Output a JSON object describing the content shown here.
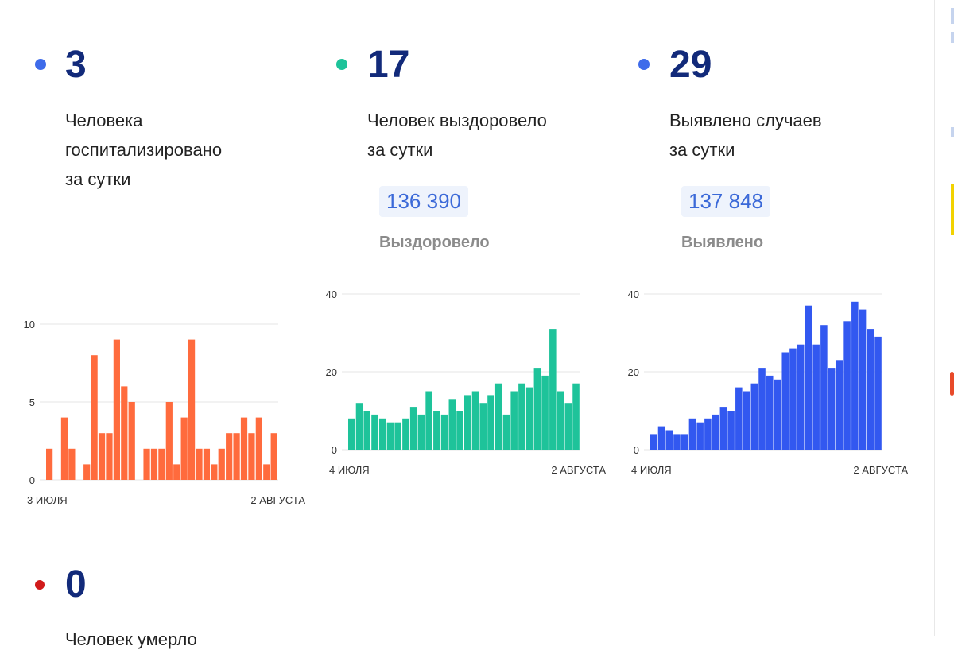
{
  "stats": [
    {
      "value": "3",
      "color": "#3e6bea",
      "lines": [
        "Человека",
        "госпитализировано",
        "за сутки"
      ]
    },
    {
      "value": "17",
      "color": "#1ec39a",
      "lines": [
        "Человек выздоровело",
        "за сутки"
      ],
      "total": "136 390",
      "total_label": "Выздоровело"
    },
    {
      "value": "29",
      "color": "#3e6bea",
      "lines": [
        "Выявлено случаев",
        "за сутки"
      ],
      "total": "137 848",
      "total_label": "Выявлено"
    },
    {
      "value": "0",
      "color": "#d11a1a",
      "lines": [
        "Человек умерло"
      ]
    }
  ],
  "chart_data": [
    {
      "type": "bar",
      "color": "#ff6b3d",
      "x_start_label": "3 ИЮЛЯ",
      "x_end_label": "2 АВГУСТА",
      "ylim": [
        0,
        10
      ],
      "yticks": [
        "0",
        "5",
        "10"
      ],
      "values": [
        2,
        0,
        4,
        2,
        0,
        1,
        8,
        3,
        3,
        9,
        6,
        5,
        0,
        2,
        2,
        2,
        5,
        1,
        4,
        9,
        2,
        2,
        1,
        2,
        3,
        3,
        4,
        3,
        4,
        1,
        3
      ]
    },
    {
      "type": "bar",
      "color": "#1ec39a",
      "x_start_label": "4 ИЮЛЯ",
      "x_end_label": "2 АВГУСТА",
      "ylim": [
        0,
        40
      ],
      "yticks": [
        "0",
        "20",
        "40"
      ],
      "values": [
        8,
        12,
        10,
        9,
        8,
        7,
        7,
        8,
        11,
        9,
        15,
        10,
        9,
        13,
        10,
        14,
        15,
        12,
        14,
        17,
        9,
        15,
        17,
        16,
        21,
        19,
        31,
        15,
        12,
        17
      ]
    },
    {
      "type": "bar",
      "color": "#3258f0",
      "x_start_label": "4 ИЮЛЯ",
      "x_end_label": "2 АВГУСТА",
      "ylim": [
        0,
        40
      ],
      "yticks": [
        "0",
        "20",
        "40"
      ],
      "values": [
        4,
        6,
        5,
        4,
        4,
        8,
        7,
        8,
        9,
        11,
        10,
        16,
        15,
        17,
        21,
        19,
        18,
        25,
        26,
        27,
        37,
        27,
        32,
        21,
        23,
        33,
        38,
        36,
        31,
        29
      ]
    }
  ]
}
